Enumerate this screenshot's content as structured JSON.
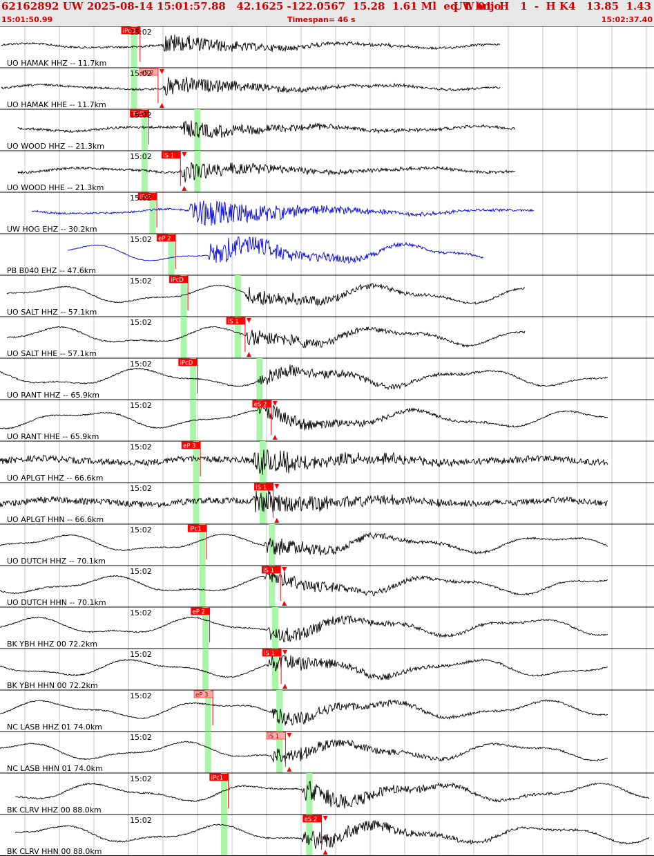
{
  "header": {
    "event": "62162892 UW 2025-08-14 15:01:57.88   42.1625 -122.0567  15.28  1.61 Ml  eq  L bnjo",
    "event_right": "UW 01  H   1  -  H K4   13.85  1.43",
    "start_time": "15:01:50.99",
    "timespan": "Timespan=  46 s",
    "end_time": "15:02:37.40"
  },
  "chart_data": {
    "type": "line",
    "title": "",
    "x_range": [
      0,
      46.41
    ],
    "time_tick_label": "15:02",
    "grid_interval_s": 5,
    "colors": {
      "trace": "#000000",
      "trace_alt": "#0000dd",
      "pick": "#ff0000",
      "pick_light": "#ffaaaa",
      "window": "#aaf5aa"
    },
    "traces": [
      {
        "label": "UO HAMAK HHZ -- 11.7km",
        "color": "#000000",
        "start": 11.0,
        "end": 71.5,
        "p": [
          12.3,
          12.3
        ],
        "s": [
          15.5,
          15.5
        ],
        "pick": {
          "t": 12.6,
          "text": "iPcD",
          "kind": "P",
          "light": false
        },
        "onset": 19.6,
        "amp": 0.55,
        "noise": 0.5
      },
      {
        "label": "UO HAMAK HHE -- 11.7km",
        "color": "#000000",
        "start": 11.0,
        "end": 71.5,
        "p": [
          12.3,
          12.3
        ],
        "s": [
          15.5,
          15.5
        ],
        "pick": {
          "t": 15.5,
          "text": "eS 2",
          "kind": "S",
          "light": true
        },
        "onset": 19.6,
        "amp": 0.55,
        "noise": 0.5
      },
      {
        "label": "UO WOOD HHZ -- 21.3km",
        "color": "#000000",
        "start": 14.0,
        "end": 74.0,
        "p": [
          14.0,
          22.5
        ],
        "s": [
          17.3,
          28.5
        ],
        "pick": {
          "t": 14.0,
          "text": "iPcD",
          "kind": "P",
          "light": false
        },
        "onset": 22.5,
        "amp": 0.55,
        "noise": 0.6
      },
      {
        "label": "UO WOOD HHE -- 21.3km",
        "color": "#000000",
        "start": 14.0,
        "end": 74.0,
        "p": [
          14.0,
          22.5
        ],
        "s": [
          17.3,
          28.5
        ],
        "pick": {
          "t": 19.1,
          "text": "iS 1",
          "kind": "S",
          "light": false
        },
        "onset": 22.5,
        "amp": 0.55,
        "noise": 0.6
      },
      {
        "label": "UW HOG EHZ -- 30.2km",
        "color": "#0000dd",
        "start": -14.0,
        "end": 77.0,
        "p": [
          15.3,
          15.3
        ],
        "s": [
          20.3,
          20.3
        ],
        "pick": {
          "t": 15.3,
          "text": "iPc1",
          "kind": "P",
          "light": false
        },
        "onset": 24.0,
        "amp": 0.9,
        "noise": 0.45
      },
      {
        "label": "PB B040 EHZ -- 47.6km",
        "color": "#0000dd",
        "start": -8.0,
        "end": 82.0,
        "p": [
          18.3,
          18.3
        ],
        "s": [
          26.0,
          26.0
        ],
        "pick": {
          "t": 18.3,
          "text": "eP 2",
          "kind": "P",
          "light": false
        },
        "onset": 27.0,
        "amp": 0.8,
        "noise": 0.2
      },
      {
        "label": "UO SALT HHZ -- 57.1km",
        "color": "#000000",
        "start": 12.0,
        "end": 84.0,
        "p": [
          20.3,
          29.0
        ],
        "s": [
          20.3,
          29.0
        ],
        "pick": {
          "t": 20.3,
          "text": "iPcD",
          "kind": "P",
          "light": false
        },
        "onset": 33.0,
        "amp": 0.5,
        "noise": 0.3
      },
      {
        "label": "UO SALT HHE -- 57.1km",
        "color": "#000000",
        "start": 12.0,
        "end": 84.0,
        "p": [
          20.3,
          29.0
        ],
        "s": [
          20.3,
          29.0
        ],
        "pick": {
          "t": 29.5,
          "text": "iS 1",
          "kind": "S",
          "light": false
        },
        "onset": 33.0,
        "amp": 0.5,
        "noise": 0.3
      },
      {
        "label": "UO RANT HHZ -- 65.9km",
        "color": "#000000",
        "start": 9.0,
        "end": 88.0,
        "p": [
          21.8,
          32.5
        ],
        "s": [
          21.8,
          32.5
        ],
        "pick": {
          "t": 21.8,
          "text": "iPcD",
          "kind": "P",
          "light": false
        },
        "onset": 35.0,
        "amp": 0.5,
        "noise": 0.3
      },
      {
        "label": "UO RANT HHE -- 65.9km",
        "color": "#000000",
        "start": 9.0,
        "end": 88.0,
        "p": [
          21.8,
          32.5
        ],
        "s": [
          21.8,
          32.5
        ],
        "pick": {
          "t": 33.7,
          "text": "eS 2",
          "kind": "S",
          "light": false
        },
        "onset": 35.0,
        "amp": 0.5,
        "noise": 0.3
      },
      {
        "label": "UO APLGT HHZ -- 66.6km",
        "color": "#000000",
        "start": 9.0,
        "end": 88.0,
        "p": [
          22.3,
          33.0
        ],
        "s": [
          22.3,
          33.0
        ],
        "pick": {
          "t": 22.3,
          "text": "eP 3",
          "kind": "P",
          "light": false
        },
        "onset": 34.0,
        "amp": 0.7,
        "noise": 1.5
      },
      {
        "label": "UO APLGT HHN -- 66.6km",
        "color": "#000000",
        "start": 9.0,
        "end": 88.0,
        "p": [
          22.3,
          33.0
        ],
        "s": [
          22.3,
          33.0
        ],
        "pick": {
          "t": 34.0,
          "text": "iS 1",
          "kind": "S",
          "light": false
        },
        "onset": 34.0,
        "amp": 0.7,
        "noise": 1.5
      },
      {
        "label": "UO DUTCH HHZ -- 70.1km",
        "color": "#000000",
        "start": 10.0,
        "end": 88.0,
        "p": [
          23.3,
          34.5
        ],
        "s": [
          23.3,
          34.5
        ],
        "pick": {
          "t": 23.3,
          "text": "iPc1",
          "kind": "P",
          "light": false
        },
        "onset": 36.0,
        "amp": 0.5,
        "noise": 0.3
      },
      {
        "label": "UO DUTCH HHN -- 70.1km",
        "color": "#000000",
        "start": 10.0,
        "end": 88.0,
        "p": [
          23.3,
          34.5
        ],
        "s": [
          23.3,
          34.5
        ],
        "pick": {
          "t": 35.2,
          "text": "iS 1",
          "kind": "S",
          "light": false
        },
        "onset": 36.0,
        "amp": 0.5,
        "noise": 0.3
      },
      {
        "label": "BK YBH HHZ 00 72.2km",
        "color": "#000000",
        "start": 10.0,
        "end": 88.0,
        "p": [
          23.8,
          35.0
        ],
        "s": [
          23.8,
          35.0
        ],
        "pick": {
          "t": 23.8,
          "text": "eP 2",
          "kind": "P",
          "light": false
        },
        "onset": 36.5,
        "amp": 0.5,
        "noise": 0.3
      },
      {
        "label": "BK YBH HHN 00 72.2km",
        "color": "#000000",
        "start": 10.0,
        "end": 88.0,
        "p": [
          23.8,
          35.0
        ],
        "s": [
          23.8,
          35.0
        ],
        "pick": {
          "t": 35.3,
          "text": "iS 1",
          "kind": "S",
          "light": false
        },
        "onset": 36.5,
        "amp": 0.5,
        "noise": 0.3
      },
      {
        "label": "NC LASB HHZ 01 74.0km",
        "color": "#000000",
        "start": 10.5,
        "end": 88.0,
        "p": [
          24.2,
          35.7
        ],
        "s": [
          24.2,
          35.7
        ],
        "pick": {
          "t": 24.3,
          "text": "eP 3",
          "kind": "P",
          "light": true
        },
        "onset": 37.0,
        "amp": 0.5,
        "noise": 0.3
      },
      {
        "label": "NC LASB HHN 01 74.0km",
        "color": "#000000",
        "start": 10.5,
        "end": 88.0,
        "p": [
          24.2,
          35.7
        ],
        "s": [
          24.2,
          35.7
        ],
        "pick": {
          "t": 36.0,
          "text": "iS 1",
          "kind": "S",
          "light": true
        },
        "onset": 37.0,
        "amp": 0.5,
        "noise": 0.3
      },
      {
        "label": "BK CLRV HHZ 00 88.0km",
        "color": "#000000",
        "start": 13.5,
        "end": 90.0,
        "p": [
          26.8,
          40.5
        ],
        "s": [
          26.8,
          40.5
        ],
        "pick": {
          "t": 26.8,
          "text": "iPc1",
          "kind": "P",
          "light": false
        },
        "onset": 42.0,
        "amp": 0.6,
        "noise": 0.35
      },
      {
        "label": "BK CLRV HHN 00 88.0km",
        "color": "#000000",
        "start": 13.5,
        "end": 90.0,
        "p": [
          26.8,
          40.5
        ],
        "s": [
          26.8,
          40.5
        ],
        "pick": {
          "t": 41.8,
          "text": "eS 2",
          "kind": "S",
          "light": false
        },
        "onset": 42.0,
        "amp": 0.6,
        "noise": 0.35
      }
    ]
  }
}
